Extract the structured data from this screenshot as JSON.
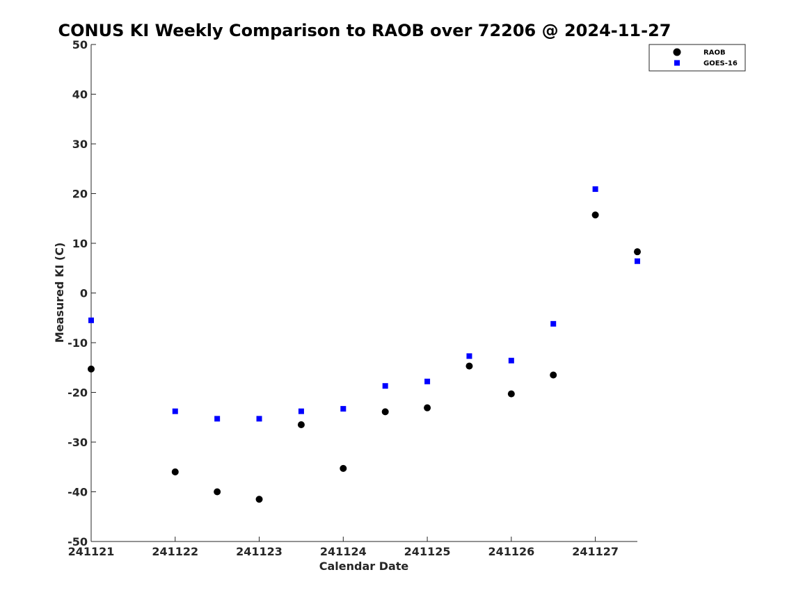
{
  "chart_data": {
    "type": "scatter",
    "title": "CONUS KI Weekly Comparison to RAOB over 72206 @ 2024-11-27",
    "xlabel": "Calendar Date",
    "ylabel": "Measured KI (C)",
    "xlim": [
      0,
      6.5
    ],
    "ylim": [
      -50,
      50
    ],
    "x_ticks": [
      {
        "value": 0,
        "label": "241121"
      },
      {
        "value": 1,
        "label": "241122"
      },
      {
        "value": 2,
        "label": "241123"
      },
      {
        "value": 3,
        "label": "241124"
      },
      {
        "value": 4,
        "label": "241125"
      },
      {
        "value": 5,
        "label": "241126"
      },
      {
        "value": 6,
        "label": "241127"
      }
    ],
    "y_ticks": [
      50,
      40,
      30,
      20,
      10,
      0,
      -10,
      -20,
      -30,
      -40,
      -50
    ],
    "grid": false,
    "legend_position": "top-right",
    "x_date_base": "2024-11-21",
    "series": [
      {
        "name": "RAOB",
        "marker": "circle",
        "color": "#000000",
        "points": [
          {
            "x": 0,
            "y": -15.3
          },
          {
            "x": 1,
            "y": -36.0
          },
          {
            "x": 1.5,
            "y": -40.0
          },
          {
            "x": 2,
            "y": -41.5
          },
          {
            "x": 2.5,
            "y": -26.5
          },
          {
            "x": 3,
            "y": -35.3
          },
          {
            "x": 3.5,
            "y": -23.9
          },
          {
            "x": 4,
            "y": -23.1
          },
          {
            "x": 4.5,
            "y": -14.7
          },
          {
            "x": 5,
            "y": -20.3
          },
          {
            "x": 5.5,
            "y": -16.5
          },
          {
            "x": 6,
            "y": 15.7
          },
          {
            "x": 6.5,
            "y": 8.3
          }
        ]
      },
      {
        "name": "GOES-16",
        "marker": "square",
        "color": "#0000ff",
        "points": [
          {
            "x": 0,
            "y": -5.5
          },
          {
            "x": 1,
            "y": -23.8
          },
          {
            "x": 1.5,
            "y": -25.3
          },
          {
            "x": 2,
            "y": -25.3
          },
          {
            "x": 2.5,
            "y": -23.8
          },
          {
            "x": 3,
            "y": -23.3
          },
          {
            "x": 3.5,
            "y": -18.7
          },
          {
            "x": 4,
            "y": -17.8
          },
          {
            "x": 4.5,
            "y": -12.7
          },
          {
            "x": 5,
            "y": -13.6
          },
          {
            "x": 5.5,
            "y": -6.2
          },
          {
            "x": 6,
            "y": 20.9
          },
          {
            "x": 6.5,
            "y": 6.4
          }
        ]
      }
    ]
  }
}
